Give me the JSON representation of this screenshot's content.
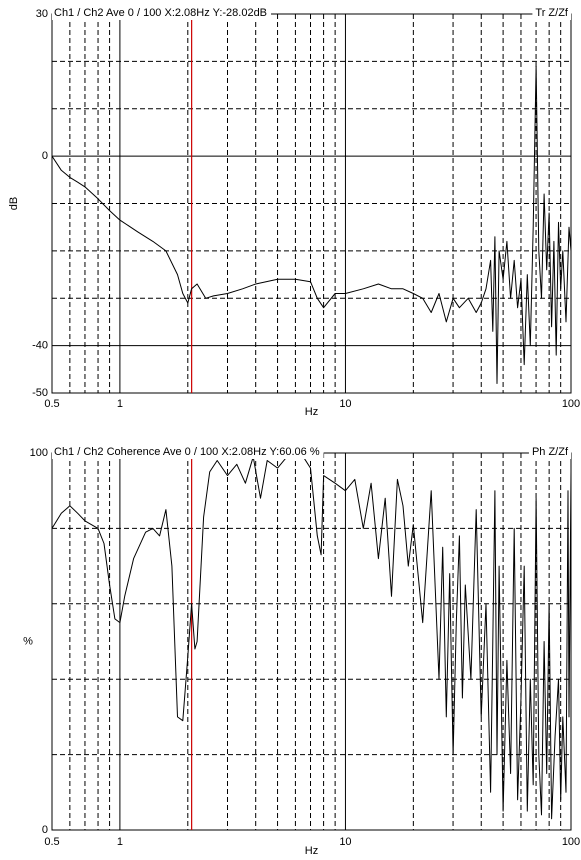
{
  "chart_data": [
    {
      "type": "line",
      "title": "Ch1 / Ch2  Ave 0 / 100  X:2.08Hz  Y:-28.02dB",
      "mode_label": "Tr Z/Zf",
      "xlabel": "Hz",
      "ylabel": "dB",
      "xscale": "log",
      "color": "#000000",
      "cursor_x": 2.08,
      "cursor_color": "#cc0000",
      "xlim": [
        0.5,
        100
      ],
      "xticks": [
        0.5,
        1,
        10,
        100
      ],
      "xgrid": [
        0.6,
        0.7,
        0.8,
        0.9,
        2,
        3,
        4,
        5,
        6,
        7,
        8,
        9,
        20,
        30,
        40,
        50,
        60,
        70,
        80,
        90
      ],
      "ylim": [
        -50,
        30
      ],
      "yticks": [
        -50,
        -40,
        0,
        30
      ],
      "ygrid": [
        -30,
        -20,
        -10,
        10,
        20
      ],
      "x": [
        0.5,
        0.55,
        0.6,
        0.65,
        0.7,
        0.8,
        0.9,
        1.0,
        1.2,
        1.4,
        1.6,
        1.8,
        1.9,
        2.0,
        2.08,
        2.2,
        2.4,
        2.6,
        3.0,
        3.5,
        4.0,
        5.0,
        6.0,
        7.0,
        7.5,
        8.0,
        9.0,
        10,
        12,
        14,
        16,
        18,
        20,
        22,
        24,
        26,
        28,
        30,
        32,
        35,
        38,
        40,
        42,
        44,
        45,
        46,
        47,
        48,
        50,
        52,
        54,
        56,
        58,
        60,
        62,
        64,
        66,
        68,
        70,
        72,
        74,
        76,
        78,
        80,
        82,
        84,
        86,
        88,
        90,
        92,
        95,
        98,
        100
      ],
      "values": [
        0,
        -3,
        -4.5,
        -5.5,
        -6.5,
        -9,
        -11.5,
        -13.5,
        -16,
        -18,
        -20,
        -25,
        -29,
        -31,
        -28,
        -27,
        -30,
        -29.5,
        -29,
        -28,
        -27,
        -26,
        -26,
        -26.5,
        -30,
        -32,
        -29,
        -29,
        -28,
        -27,
        -28,
        -28,
        -29,
        -30,
        -33,
        -29,
        -35,
        -30,
        -32,
        -30,
        -33,
        -31,
        -28,
        -22,
        -37,
        -17,
        -48,
        -20,
        -26,
        -18,
        -30,
        -22,
        -32,
        -26,
        -44,
        -25,
        -40,
        -15,
        19,
        -20,
        -30,
        -8,
        -24,
        -12,
        -36,
        -18,
        -42,
        -14,
        -28,
        -20,
        -35,
        -15,
        -20
      ]
    },
    {
      "type": "line",
      "title": "Ch1 / Ch2  Coherence Ave 0 / 100  X:2.08Hz  Y:60.06 %",
      "mode_label": "Ph Z/Zf",
      "xlabel": "Hz",
      "ylabel": "%",
      "xscale": "log",
      "color": "#000000",
      "cursor_x": 2.08,
      "cursor_color": "#cc0000",
      "xlim": [
        0.5,
        100
      ],
      "xticks": [
        0.5,
        1,
        10,
        100
      ],
      "xgrid": [
        0.6,
        0.7,
        0.8,
        0.9,
        2,
        3,
        4,
        5,
        6,
        7,
        8,
        9,
        20,
        30,
        40,
        50,
        60,
        70,
        80,
        90
      ],
      "ylim": [
        0,
        100
      ],
      "yticks": [
        0,
        100
      ],
      "ygrid": [
        20,
        40,
        60,
        80
      ],
      "x": [
        0.5,
        0.55,
        0.6,
        0.65,
        0.7,
        0.8,
        0.85,
        0.9,
        0.95,
        1.0,
        1.05,
        1.15,
        1.3,
        1.4,
        1.5,
        1.6,
        1.7,
        1.8,
        1.9,
        2.0,
        2.08,
        2.15,
        2.2,
        2.35,
        2.5,
        2.7,
        3.0,
        3.3,
        3.6,
        3.9,
        4.2,
        4.5,
        5.0,
        5.5,
        6.0,
        6.5,
        7.0,
        7.5,
        7.8,
        8.0,
        9,
        10,
        11,
        12,
        13,
        14,
        15,
        16,
        17,
        18,
        19,
        20,
        22,
        24,
        26,
        27,
        28,
        29,
        30,
        31,
        32,
        33,
        34,
        36,
        38,
        40,
        42,
        44,
        45,
        46,
        47,
        48,
        50,
        52,
        54,
        56,
        58,
        60,
        62,
        64,
        66,
        68,
        70,
        72,
        74,
        76,
        78,
        80,
        82,
        85,
        88,
        90,
        92,
        95,
        97,
        98,
        100
      ],
      "values": [
        80,
        84,
        86,
        84,
        82,
        80,
        76,
        65,
        56,
        55,
        62,
        72,
        79,
        80,
        78,
        85,
        70,
        30,
        29,
        46,
        60,
        48,
        50,
        83,
        95,
        98,
        94,
        97,
        92,
        99,
        88,
        98,
        96,
        99,
        100,
        99,
        96,
        78,
        73,
        94,
        92,
        90,
        93,
        80,
        92,
        72,
        88,
        62,
        93,
        86,
        70,
        81,
        55,
        90,
        40,
        75,
        30,
        68,
        20,
        55,
        78,
        35,
        65,
        40,
        85,
        30,
        60,
        10,
        50,
        90,
        20,
        70,
        5,
        45,
        15,
        80,
        8,
        35,
        70,
        5,
        40,
        12,
        88,
        20,
        4,
        50,
        15,
        60,
        3,
        25,
        40,
        8,
        30,
        10,
        90,
        30,
        95
      ]
    }
  ]
}
